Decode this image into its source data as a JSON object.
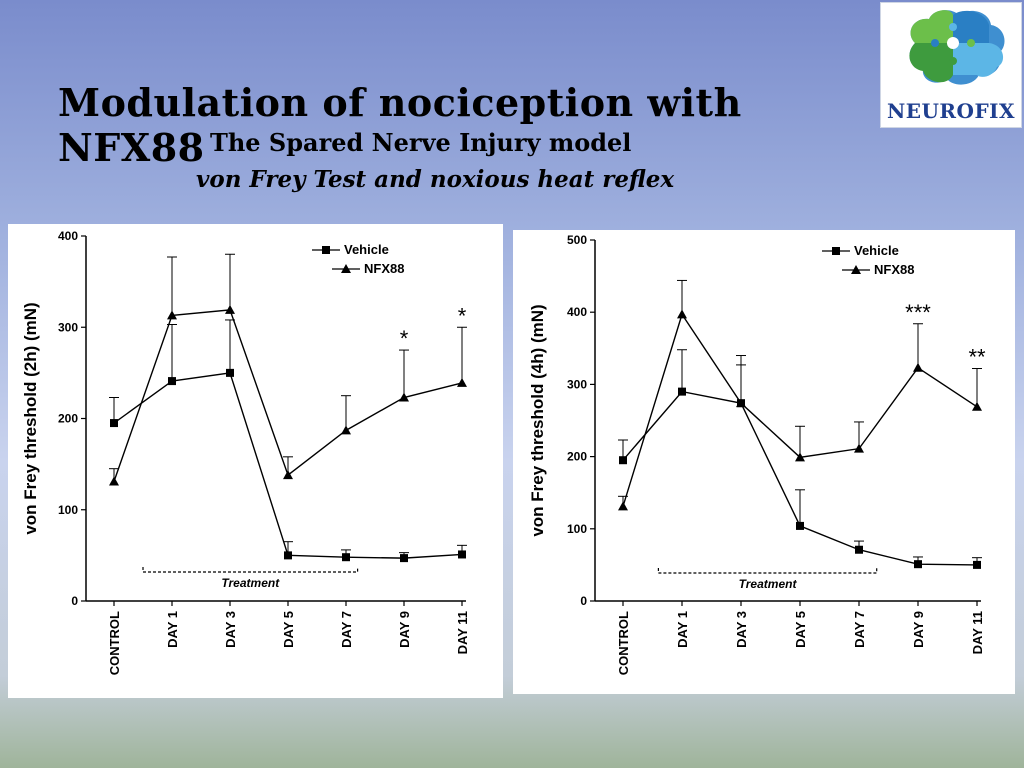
{
  "slide": {
    "title": "Modulation of nociception with NFX88",
    "subtitle": "The Spared Nerve Injury model",
    "subtitle2": "von Frey Test and noxious heat reflex",
    "logo_text": "NEUROFIX"
  },
  "chart_data": [
    {
      "type": "line",
      "ylabel": "von Frey threshold (2h) (mN)",
      "categories": [
        "CONTROL",
        "DAY 1",
        "DAY 3",
        "DAY 5",
        "DAY 7",
        "DAY 9",
        "DAY 11"
      ],
      "ylim": [
        0,
        400
      ],
      "yticks": [
        0,
        100,
        200,
        300,
        400
      ],
      "treatment_label": "Treatment",
      "series": [
        {
          "name": "Vehicle",
          "marker": "square",
          "values": [
            195,
            241,
            250,
            50,
            48,
            47,
            51
          ],
          "errors": [
            28,
            62,
            58,
            15,
            8,
            6,
            10
          ]
        },
        {
          "name": "NFX88",
          "marker": "triangle",
          "values": [
            131,
            313,
            319,
            138,
            187,
            223,
            239
          ],
          "errors": [
            14,
            64,
            61,
            20,
            38,
            52,
            61
          ]
        }
      ],
      "significance": [
        {
          "category": "DAY 9",
          "label": "*"
        },
        {
          "category": "DAY 11",
          "label": "*"
        }
      ]
    },
    {
      "type": "line",
      "ylabel": "von Frey threshold (4h) (mN)",
      "categories": [
        "CONTROL",
        "DAY 1",
        "DAY 3",
        "DAY 5",
        "DAY 7",
        "DAY 9",
        "DAY 11"
      ],
      "ylim": [
        0,
        500
      ],
      "yticks": [
        0,
        100,
        200,
        300,
        400,
        500
      ],
      "treatment_label": "Treatment",
      "series": [
        {
          "name": "Vehicle",
          "marker": "square",
          "values": [
            195,
            290,
            274,
            104,
            71,
            51,
            50
          ],
          "errors": [
            28,
            58,
            53,
            50,
            12,
            10,
            10
          ]
        },
        {
          "name": "NFX88",
          "marker": "triangle",
          "values": [
            131,
            397,
            274,
            199,
            211,
            323,
            269
          ],
          "errors": [
            14,
            47,
            66,
            43,
            37,
            61,
            53
          ]
        }
      ],
      "significance": [
        {
          "category": "DAY 9",
          "label": "***"
        },
        {
          "category": "DAY 11",
          "label": "**"
        }
      ]
    }
  ]
}
